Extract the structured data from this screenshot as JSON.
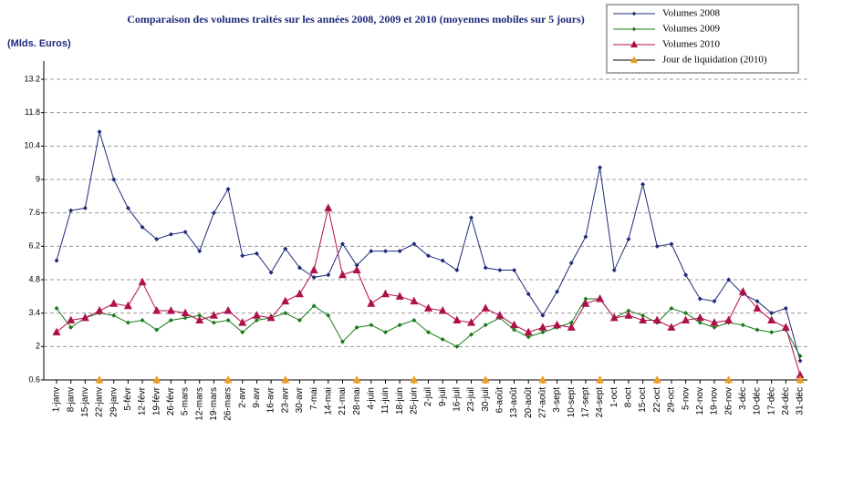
{
  "chart_data": {
    "type": "line",
    "title": "Comparaison des volumes traités sur les années 2008,  2009 et 2010 (moyennes mobiles sur 5 jours)",
    "y_label": "(Mlds. Euros)",
    "categories": [
      "1-janv",
      "8-janv",
      "15-janv",
      "22-janv",
      "29-janv",
      "5-févr",
      "12-févr",
      "19-févr",
      "26-févr",
      "5-mars",
      "12-mars",
      "19-mars",
      "26-mars",
      "2-avr",
      "9-avr",
      "16-avr",
      "23-avr",
      "30-avr",
      "7-mai",
      "14-mai",
      "21-mai",
      "28-mai",
      "4-juin",
      "11-juin",
      "18-juin",
      "25-juin",
      "2-juil",
      "9-juil",
      "16-juil",
      "23-juil",
      "30-juil",
      "6-août",
      "13-août",
      "20-août",
      "27-août",
      "3-sept",
      "10-sept",
      "17-sept",
      "24-sept",
      "1-oct",
      "8-oct",
      "15-oct",
      "22-oct",
      "29-oct",
      "5-nov",
      "12-nov",
      "19-nov",
      "26-nov",
      "3-déc",
      "10-déc",
      "17-déc",
      "24-déc",
      "31-déc"
    ],
    "series": [
      {
        "name": "Volumes 2008",
        "color": "#1f2a7a",
        "marker": "diamond",
        "values": [
          5.6,
          7.7,
          7.8,
          11,
          9.0,
          7.8,
          7.0,
          6.5,
          6.7,
          6.8,
          6.0,
          7.6,
          8.6,
          5.8,
          5.9,
          5.1,
          6.1,
          5.3,
          4.9,
          5.0,
          6.3,
          5.4,
          6.0,
          6.0,
          6.0,
          6.3,
          5.8,
          5.6,
          5.2,
          7.4,
          5.3,
          5.2,
          5.2,
          4.2,
          3.3,
          4.3,
          5.5,
          6.6,
          9.5,
          5.2,
          6.5,
          8.8,
          6.2,
          6.3,
          5.0,
          4.0,
          3.9,
          4.8,
          4.2,
          3.9,
          3.4,
          3.6,
          1.4
        ]
      },
      {
        "name": "Volumes 2009",
        "color": "#1a7a1a",
        "marker": "diamond",
        "values": [
          3.6,
          2.8,
          3.2,
          3.4,
          3.3,
          3.0,
          3.1,
          2.7,
          3.1,
          3.2,
          3.3,
          3.0,
          3.1,
          2.6,
          3.1,
          3.2,
          3.4,
          3.1,
          3.7,
          3.3,
          2.2,
          2.8,
          2.9,
          2.6,
          2.9,
          3.1,
          2.6,
          2.3,
          2.0,
          2.5,
          2.9,
          3.2,
          2.7,
          2.4,
          2.6,
          2.8,
          3.0,
          4.0,
          4.0,
          3.2,
          3.5,
          3.3,
          3.0,
          3.6,
          3.4,
          3.0,
          2.8,
          3.0,
          2.9,
          2.7,
          2.6,
          2.7,
          1.6
        ]
      },
      {
        "name": "Volumes 2010",
        "color": "#b0104a",
        "marker": "triangle",
        "values": [
          2.6,
          3.1,
          3.2,
          3.5,
          3.8,
          3.7,
          4.7,
          3.5,
          3.5,
          3.4,
          3.1,
          3.3,
          3.5,
          3.0,
          3.3,
          3.2,
          3.9,
          4.2,
          5.2,
          7.8,
          5.0,
          5.2,
          3.8,
          4.2,
          4.1,
          3.9,
          3.6,
          3.5,
          3.1,
          3.0,
          3.6,
          3.3,
          2.9,
          2.6,
          2.8,
          2.9,
          2.8,
          3.8,
          4.0,
          3.2,
          3.3,
          3.1,
          3.1,
          2.8,
          3.1,
          3.2,
          3.0,
          3.1,
          4.3,
          3.6,
          3.1,
          2.8,
          0.8
        ]
      },
      {
        "name": "Jour de liquidation (2010)",
        "color": "#f0a020",
        "marker": "triangle",
        "values": [
          null,
          null,
          null,
          0.6,
          null,
          null,
          null,
          0.6,
          null,
          null,
          null,
          null,
          0.6,
          null,
          null,
          null,
          0.6,
          null,
          null,
          null,
          null,
          0.6,
          null,
          null,
          null,
          0.6,
          null,
          null,
          null,
          null,
          0.6,
          null,
          null,
          null,
          0.6,
          null,
          null,
          null,
          0.6,
          null,
          null,
          null,
          0.6,
          null,
          null,
          null,
          null,
          0.6,
          null,
          null,
          null,
          null,
          0.6
        ]
      }
    ],
    "ylim": [
      0.6,
      13.2
    ],
    "yticks": [
      0.6,
      2,
      3.4,
      4.8,
      6.2,
      7.6,
      9,
      10.4,
      11.8,
      13.2
    ],
    "grid": true,
    "legend": "top-right"
  }
}
